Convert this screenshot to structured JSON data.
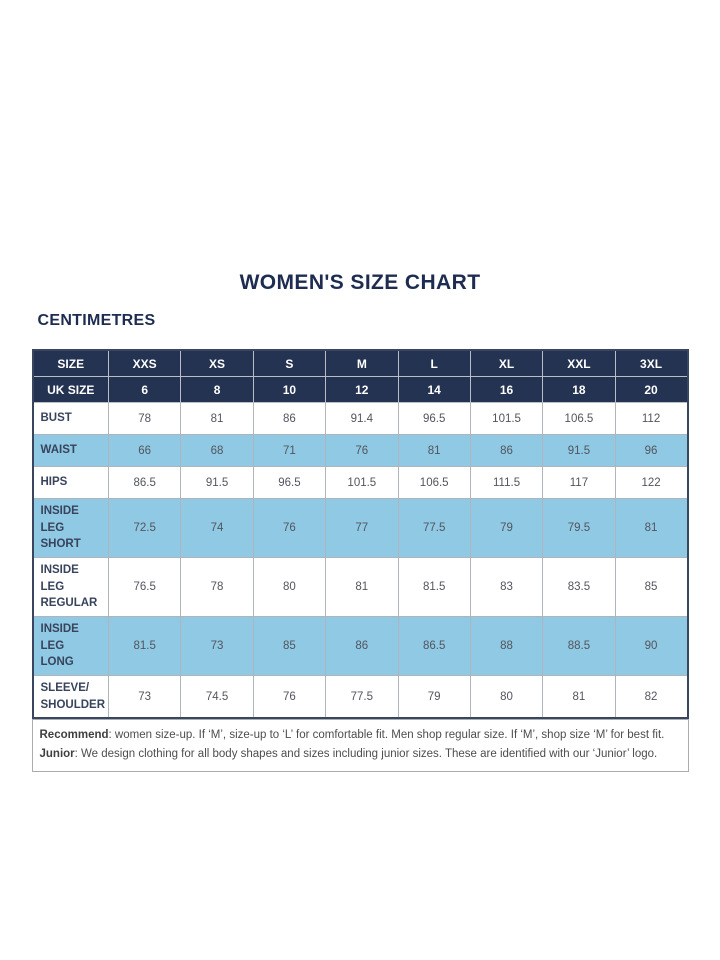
{
  "title": "WOMEN'S SIZE CHART",
  "subtitle": "CENTIMETRES",
  "table": {
    "header_rows": [
      {
        "label": "SIZE",
        "values": [
          "XXS",
          "XS",
          "S",
          "M",
          "L",
          "XL",
          "XXL",
          "3XL"
        ]
      },
      {
        "label": "UK SIZE",
        "values": [
          "6",
          "8",
          "10",
          "12",
          "14",
          "16",
          "18",
          "20"
        ]
      }
    ],
    "rows": [
      {
        "label": "BUST",
        "highlight": false,
        "values": [
          "78",
          "81",
          "86",
          "91.4",
          "96.5",
          "101.5",
          "106.5",
          "112"
        ]
      },
      {
        "label": "WAIST",
        "highlight": true,
        "values": [
          "66",
          "68",
          "71",
          "76",
          "81",
          "86",
          "91.5",
          "96"
        ]
      },
      {
        "label": "HIPS",
        "highlight": false,
        "values": [
          "86.5",
          "91.5",
          "96.5",
          "101.5",
          "106.5",
          "111.5",
          "117",
          "122"
        ]
      },
      {
        "label": "INSIDE LEG\nSHORT",
        "highlight": true,
        "values": [
          "72.5",
          "74",
          "76",
          "77",
          "77.5",
          "79",
          "79.5",
          "81"
        ]
      },
      {
        "label": "INSIDE LEG\nREGULAR",
        "highlight": false,
        "values": [
          "76.5",
          "78",
          "80",
          "81",
          "81.5",
          "83",
          "83.5",
          "85"
        ]
      },
      {
        "label": "INSIDE LEG\nLONG",
        "highlight": true,
        "values": [
          "81.5",
          "73",
          "85",
          "86",
          "86.5",
          "88",
          "88.5",
          "90"
        ]
      },
      {
        "label": "SLEEVE/\nSHOULDER",
        "highlight": false,
        "values": [
          "73",
          "74.5",
          "76",
          "77.5",
          "79",
          "80",
          "81",
          "82"
        ]
      }
    ]
  },
  "footnote": {
    "recommend_label": "Recommend",
    "recommend_text": ": women size-up. If ‘M’, size-up to ‘L’ for comfortable fit. Men shop regular size. If ‘M’, shop size ‘M’ for best fit.",
    "junior_label": "Junior",
    "junior_text": ": We design clothing for all body shapes and sizes including junior sizes. These are identified with our ‘Junior’ logo."
  },
  "colors": {
    "navy_header": "#243352",
    "row_highlight_blue": "#8fc9e4",
    "title_navy": "#1d2c50",
    "outer_border": "#3a4660",
    "grid_border": "#b0b4bb",
    "number_text": "#53555e",
    "label_text": "#38435c",
    "footnote_text": "#4d4d4d"
  }
}
